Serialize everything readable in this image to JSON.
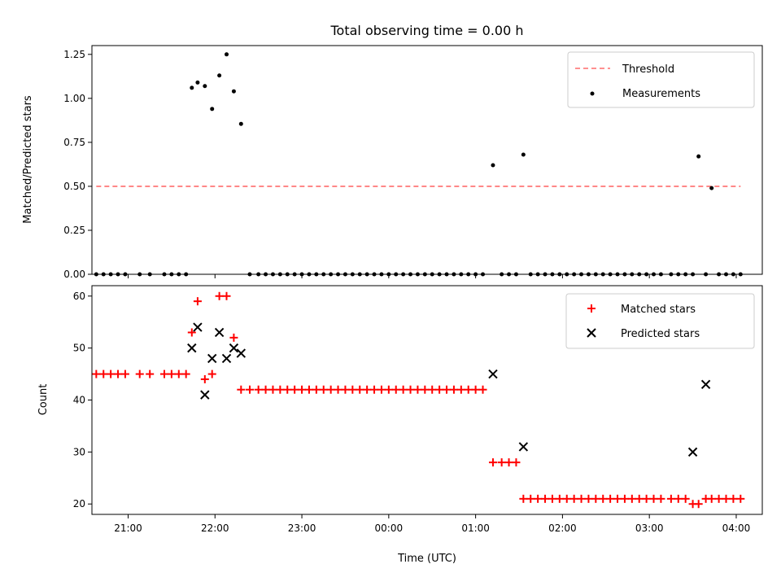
{
  "title": "Total observing time = 0.00 h",
  "chart_data": [
    {
      "type": "scatter",
      "ylabel": "Matched/Predicted stars",
      "xlabel": "",
      "ylim": [
        0,
        1.3
      ],
      "xlim": [
        "20:35",
        "04:18"
      ],
      "x_ticks": [
        "21:00",
        "22:00",
        "23:00",
        "00:00",
        "01:00",
        "02:00",
        "03:00",
        "04:00"
      ],
      "y_ticks": [
        "0.00",
        "0.25",
        "0.50",
        "0.75",
        "1.00",
        "1.25"
      ],
      "legend_position": "top-right",
      "threshold": {
        "name": "Threshold",
        "value": 0.5,
        "x_start": "20:38",
        "x_end": "04:03",
        "color": "#ff6b6b"
      },
      "series": [
        {
          "name": "Measurements",
          "color": "#000000",
          "x": [
            "20:38",
            "20:43",
            "20:48",
            "20:53",
            "20:58",
            "21:08",
            "21:15",
            "21:25",
            "21:30",
            "21:35",
            "21:40",
            "21:44",
            "21:48",
            "21:53",
            "21:58",
            "22:03",
            "22:08",
            "22:13",
            "22:18",
            "22:24",
            "22:30",
            "22:35",
            "22:40",
            "22:45",
            "22:50",
            "22:55",
            "23:00",
            "23:05",
            "23:10",
            "23:15",
            "23:20",
            "23:25",
            "23:30",
            "23:35",
            "23:40",
            "23:45",
            "23:50",
            "23:55",
            "00:00",
            "00:05",
            "00:10",
            "00:15",
            "00:20",
            "00:25",
            "00:30",
            "00:35",
            "00:40",
            "00:45",
            "00:50",
            "00:55",
            "01:00",
            "01:05",
            "01:12",
            "01:18",
            "01:23",
            "01:28",
            "01:33",
            "01:38",
            "01:43",
            "01:48",
            "01:53",
            "01:58",
            "02:03",
            "02:08",
            "02:13",
            "02:18",
            "02:23",
            "02:28",
            "02:33",
            "02:38",
            "02:43",
            "02:48",
            "02:53",
            "02:58",
            "03:03",
            "03:08",
            "03:15",
            "03:20",
            "03:25",
            "03:30",
            "03:34",
            "03:39",
            "03:43",
            "03:48",
            "03:53",
            "03:58",
            "04:03"
          ],
          "y": [
            0,
            0,
            0,
            0,
            0,
            0,
            0,
            0,
            0,
            0,
            0,
            1.06,
            1.09,
            1.07,
            0.94,
            1.13,
            1.25,
            1.04,
            0.855,
            0,
            0,
            0,
            0,
            0,
            0,
            0,
            0,
            0,
            0,
            0,
            0,
            0,
            0,
            0,
            0,
            0,
            0,
            0,
            0,
            0,
            0,
            0,
            0,
            0,
            0,
            0,
            0,
            0,
            0,
            0,
            0,
            0,
            0.62,
            0,
            0,
            0,
            0.68,
            0,
            0,
            0,
            0,
            0,
            0,
            0,
            0,
            0,
            0,
            0,
            0,
            0,
            0,
            0,
            0,
            0,
            0,
            0,
            0,
            0,
            0,
            0,
            0.67,
            0,
            0.49,
            0,
            0,
            0,
            0
          ]
        }
      ]
    },
    {
      "type": "scatter",
      "ylabel": "Count",
      "xlabel": "Time (UTC)",
      "ylim": [
        18,
        62
      ],
      "xlim": [
        "20:35",
        "04:18"
      ],
      "x_ticks": [
        "21:00",
        "22:00",
        "23:00",
        "00:00",
        "01:00",
        "02:00",
        "03:00",
        "04:00"
      ],
      "y_ticks": [
        "20",
        "30",
        "40",
        "50",
        "60"
      ],
      "legend_position": "top-right",
      "series": [
        {
          "name": "Matched stars",
          "color": "#ff0000",
          "marker": "+",
          "x": [
            "20:38",
            "20:43",
            "20:48",
            "20:53",
            "20:58",
            "21:08",
            "21:15",
            "21:25",
            "21:30",
            "21:35",
            "21:40",
            "21:44",
            "21:48",
            "21:53",
            "21:58",
            "22:03",
            "22:08",
            "22:13",
            "22:18",
            "22:24",
            "22:30",
            "22:35",
            "22:40",
            "22:45",
            "22:50",
            "22:55",
            "23:00",
            "23:05",
            "23:10",
            "23:15",
            "23:20",
            "23:25",
            "23:30",
            "23:35",
            "23:40",
            "23:45",
            "23:50",
            "23:55",
            "00:00",
            "00:05",
            "00:10",
            "00:15",
            "00:20",
            "00:25",
            "00:30",
            "00:35",
            "00:40",
            "00:45",
            "00:50",
            "00:55",
            "01:00",
            "01:05",
            "01:12",
            "01:18",
            "01:23",
            "01:28",
            "01:33",
            "01:38",
            "01:43",
            "01:48",
            "01:53",
            "01:58",
            "02:03",
            "02:08",
            "02:13",
            "02:18",
            "02:23",
            "02:28",
            "02:33",
            "02:38",
            "02:43",
            "02:48",
            "02:53",
            "02:58",
            "03:03",
            "03:08",
            "03:15",
            "03:20",
            "03:25",
            "03:30",
            "03:34",
            "03:39",
            "03:43",
            "03:48",
            "03:53",
            "03:58",
            "04:03"
          ],
          "y": [
            45,
            45,
            45,
            45,
            45,
            45,
            45,
            45,
            45,
            45,
            45,
            53,
            59,
            44,
            45,
            60,
            60,
            52,
            42,
            42,
            42,
            42,
            42,
            42,
            42,
            42,
            42,
            42,
            42,
            42,
            42,
            42,
            42,
            42,
            42,
            42,
            42,
            42,
            42,
            42,
            42,
            42,
            42,
            42,
            42,
            42,
            42,
            42,
            42,
            42,
            42,
            42,
            28,
            28,
            28,
            28,
            21,
            21,
            21,
            21,
            21,
            21,
            21,
            21,
            21,
            21,
            21,
            21,
            21,
            21,
            21,
            21,
            21,
            21,
            21,
            21,
            21,
            21,
            21,
            20,
            20,
            21,
            21,
            21,
            21,
            21,
            21
          ]
        },
        {
          "name": "Predicted stars",
          "color": "#000000",
          "marker": "x",
          "x": [
            "21:44",
            "21:48",
            "21:53",
            "21:58",
            "22:03",
            "22:08",
            "22:13",
            "22:18",
            "01:12",
            "01:33",
            "03:30",
            "03:39"
          ],
          "y": [
            50,
            54,
            41,
            48,
            53,
            48,
            50,
            49,
            45,
            31,
            30,
            43
          ]
        }
      ]
    }
  ]
}
